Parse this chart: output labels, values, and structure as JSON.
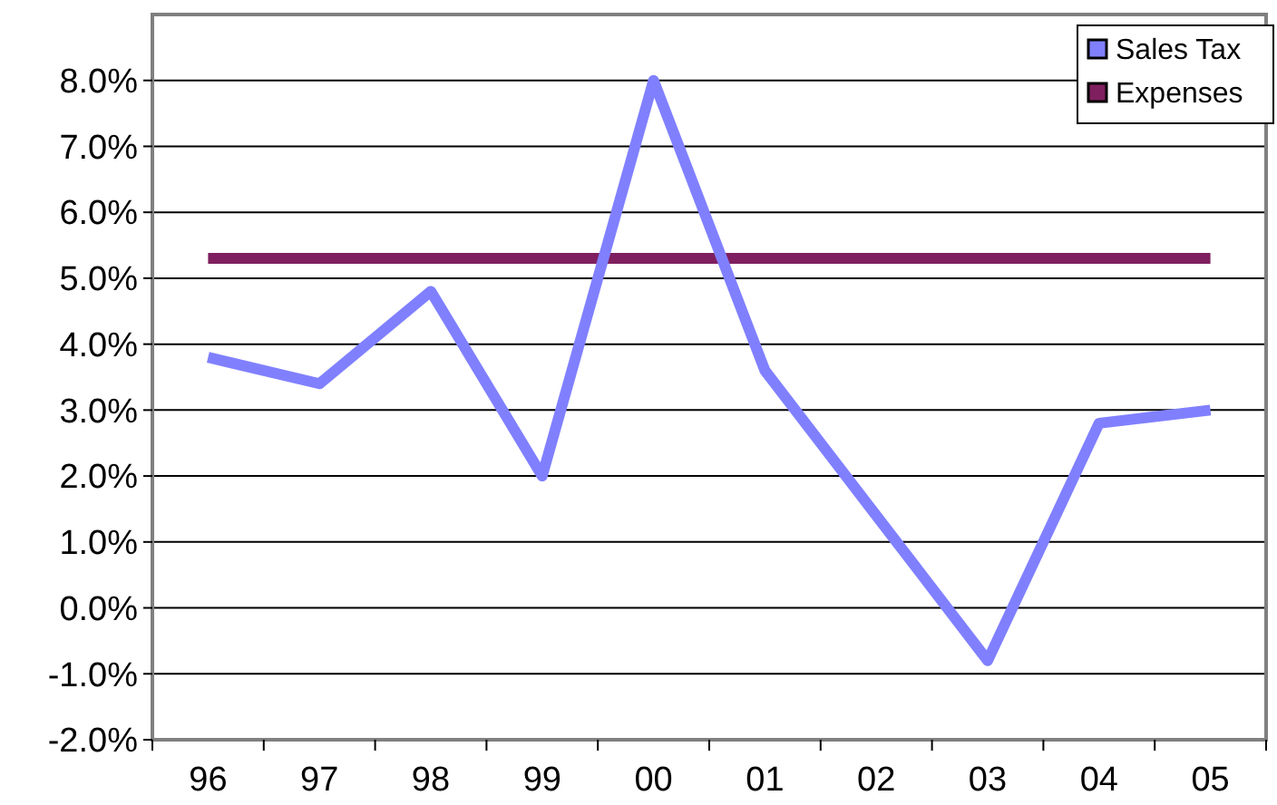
{
  "chart_data": {
    "type": "line",
    "categories": [
      "96",
      "97",
      "98",
      "99",
      "00",
      "01",
      "02",
      "03",
      "04",
      "05"
    ],
    "series": [
      {
        "name": "Sales Tax",
        "color": "#8080ff",
        "values": [
          3.8,
          3.4,
          4.8,
          2.0,
          8.0,
          3.6,
          1.4,
          -0.8,
          2.8,
          3.0
        ]
      },
      {
        "name": "Expenses",
        "color": "#7f1f5f",
        "values": [
          5.3,
          5.3,
          5.3,
          5.3,
          5.3,
          5.3,
          5.3,
          5.3,
          5.3,
          5.3
        ]
      }
    ],
    "ylim": [
      -2,
      9
    ],
    "yticks": [
      {
        "value": -2,
        "label": "-2.0%"
      },
      {
        "value": -1,
        "label": "-1.0%"
      },
      {
        "value": 0,
        "label": "0.0%"
      },
      {
        "value": 1,
        "label": "1.0%"
      },
      {
        "value": 2,
        "label": "2.0%"
      },
      {
        "value": 3,
        "label": "3.0%"
      },
      {
        "value": 4,
        "label": "4.0%"
      },
      {
        "value": 5,
        "label": "5.0%"
      },
      {
        "value": 6,
        "label": "6.0%"
      },
      {
        "value": 7,
        "label": "7.0%"
      },
      {
        "value": 8,
        "label": "8.0%"
      }
    ],
    "grid": "y",
    "legend": "top right",
    "marker": "none",
    "line_style": "solid"
  }
}
